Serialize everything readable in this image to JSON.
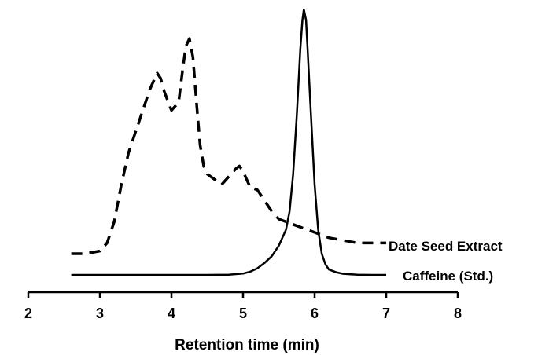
{
  "chart_data": {
    "type": "line",
    "title": "",
    "xlabel": "Retention time (min)",
    "ylabel": "",
    "xlim": [
      2,
      8
    ],
    "xticks": [
      2,
      3,
      4,
      5,
      6,
      7,
      8
    ],
    "ylim": [
      0,
      1
    ],
    "grid": false,
    "series": [
      {
        "name": "Date Seed Extract",
        "style": "dashed",
        "color": "#000000",
        "x": [
          2.6,
          2.8,
          3.0,
          3.1,
          3.2,
          3.3,
          3.4,
          3.5,
          3.6,
          3.7,
          3.8,
          3.85,
          3.9,
          4.0,
          4.1,
          4.15,
          4.2,
          4.25,
          4.3,
          4.35,
          4.4,
          4.45,
          4.5,
          4.6,
          4.7,
          4.8,
          4.9,
          4.95,
          5.0,
          5.1,
          5.2,
          5.3,
          5.4,
          5.5,
          5.6,
          5.7,
          5.8,
          6.0,
          6.2,
          6.4,
          6.6,
          6.8,
          7.0
        ],
        "y": [
          0.08,
          0.08,
          0.09,
          0.12,
          0.2,
          0.34,
          0.46,
          0.54,
          0.62,
          0.7,
          0.76,
          0.74,
          0.69,
          0.62,
          0.65,
          0.76,
          0.86,
          0.89,
          0.82,
          0.65,
          0.49,
          0.41,
          0.38,
          0.36,
          0.34,
          0.37,
          0.4,
          0.41,
          0.39,
          0.33,
          0.32,
          0.28,
          0.24,
          0.21,
          0.2,
          0.19,
          0.18,
          0.16,
          0.14,
          0.13,
          0.12,
          0.12,
          0.12
        ]
      },
      {
        "name": "Caffeine (Std.)",
        "style": "solid",
        "color": "#000000",
        "x": [
          2.6,
          3.0,
          4.0,
          4.5,
          4.8,
          5.0,
          5.1,
          5.2,
          5.3,
          5.4,
          5.5,
          5.6,
          5.65,
          5.7,
          5.75,
          5.8,
          5.83,
          5.85,
          5.88,
          5.9,
          5.95,
          6.0,
          6.05,
          6.1,
          6.15,
          6.2,
          6.3,
          6.4,
          6.6,
          6.8,
          7.0
        ],
        "y": [
          0.0,
          0.0,
          0.0,
          0.0,
          0.001,
          0.005,
          0.012,
          0.025,
          0.045,
          0.07,
          0.11,
          0.17,
          0.24,
          0.38,
          0.6,
          0.85,
          0.96,
          1.0,
          0.96,
          0.86,
          0.6,
          0.34,
          0.17,
          0.08,
          0.04,
          0.02,
          0.01,
          0.004,
          0.001,
          0.0,
          0.0
        ]
      }
    ]
  }
}
